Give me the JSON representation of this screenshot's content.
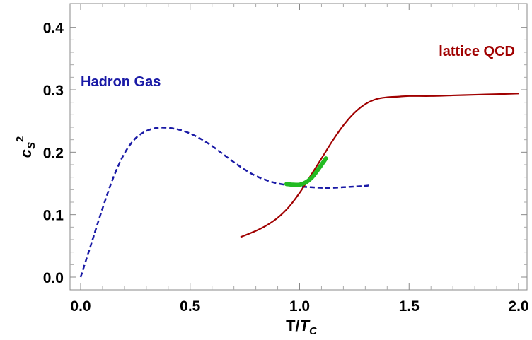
{
  "chart_data": {
    "type": "line",
    "title": "",
    "xlabel_main": "T/",
    "xlabel_sym": "T",
    "xlabel_sub": "C",
    "ylabel_main": "c",
    "ylabel_sub": "S",
    "ylabel_sup": "2",
    "xlim": [
      0.0,
      2.0
    ],
    "ylim": [
      0.0,
      0.42
    ],
    "xticks": [
      "0.0",
      "0.5",
      "1.0",
      "1.5",
      "2.0"
    ],
    "yticks": [
      "0.0",
      "0.1",
      "0.2",
      "0.3",
      "0.4"
    ],
    "xtick_values": [
      0.0,
      0.5,
      1.0,
      1.5,
      2.0
    ],
    "ytick_values": [
      0.0,
      0.1,
      0.2,
      0.3,
      0.4
    ],
    "grid": false,
    "series": [
      {
        "name": "Hadron Gas",
        "color": "#1a1aa6",
        "style": "dashed",
        "x": [
          0.0,
          0.05,
          0.1,
          0.15,
          0.2,
          0.25,
          0.3,
          0.35,
          0.4,
          0.45,
          0.5,
          0.55,
          0.6,
          0.65,
          0.7,
          0.75,
          0.8,
          0.85,
          0.9,
          0.95,
          1.0,
          1.05,
          1.1,
          1.15,
          1.2,
          1.25,
          1.3,
          1.32
        ],
        "y": [
          0.0,
          0.055,
          0.11,
          0.16,
          0.198,
          0.222,
          0.234,
          0.239,
          0.239,
          0.236,
          0.23,
          0.221,
          0.21,
          0.197,
          0.184,
          0.172,
          0.162,
          0.155,
          0.15,
          0.147,
          0.145,
          0.144,
          0.143,
          0.143,
          0.144,
          0.145,
          0.146,
          0.147
        ]
      },
      {
        "name": "lattice QCD",
        "color": "#a00000",
        "style": "solid",
        "x": [
          0.73,
          0.8,
          0.85,
          0.9,
          0.95,
          1.0,
          1.05,
          1.1,
          1.15,
          1.2,
          1.25,
          1.3,
          1.35,
          1.4,
          1.45,
          1.5,
          1.6,
          1.7,
          1.8,
          1.9,
          2.0
        ],
        "y": [
          0.064,
          0.074,
          0.083,
          0.095,
          0.112,
          0.135,
          0.162,
          0.19,
          0.218,
          0.243,
          0.263,
          0.277,
          0.285,
          0.288,
          0.289,
          0.29,
          0.29,
          0.291,
          0.292,
          0.293,
          0.294
        ]
      },
      {
        "name": "",
        "color": "#22bb22",
        "style": "solid-thick",
        "x": [
          0.94,
          0.97,
          1.0,
          1.03,
          1.06,
          1.09,
          1.12
        ],
        "y": [
          0.149,
          0.148,
          0.148,
          0.152,
          0.161,
          0.175,
          0.19
        ]
      }
    ],
    "annotations": [
      {
        "text": "Hadron Gas",
        "color": "#1a1aa6"
      },
      {
        "text": "lattice QCD",
        "color": "#a00000"
      }
    ]
  }
}
